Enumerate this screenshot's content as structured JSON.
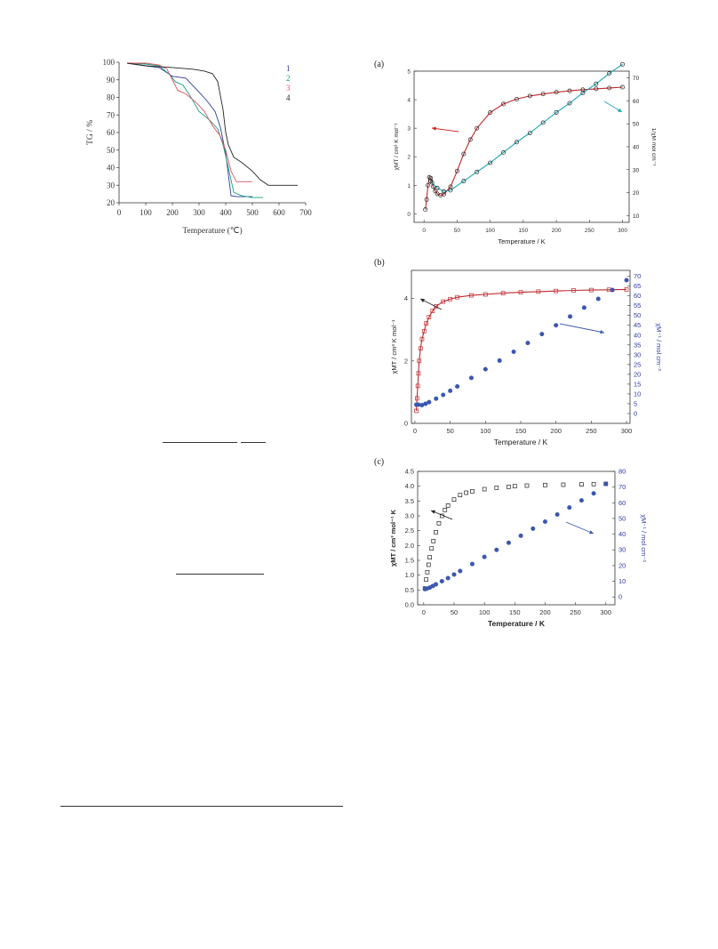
{
  "labels": {
    "panel_a": "(a)",
    "panel_b": "(b)",
    "panel_c": "(c)"
  },
  "colors": {
    "s1": "#2b3c9e",
    "s2": "#14a07a",
    "s3": "#e0525e",
    "s4": "#222222",
    "red_fit": "#c0282c",
    "cyan_fit": "#1aa6b0",
    "blue": "#3b57b0",
    "blue_axis": "#2f3aa8"
  },
  "chart_data": [
    {
      "id": "tg",
      "type": "line",
      "title": "",
      "xlabel": "Temperature (℃)",
      "ylabel": "TG / %",
      "xlim": [
        0,
        700
      ],
      "ylim": [
        20,
        100
      ],
      "xticks": [
        0,
        100,
        200,
        300,
        400,
        500,
        600,
        700
      ],
      "yticks": [
        20,
        30,
        40,
        50,
        60,
        70,
        80,
        90,
        100
      ],
      "grid": false,
      "legend": "top-right",
      "series": [
        {
          "name": "1",
          "color": "#2b3c9e",
          "x": [
            30,
            100,
            150,
            200,
            250,
            300,
            330,
            360,
            380,
            400,
            420,
            440,
            460,
            500
          ],
          "y": [
            99.5,
            98,
            97,
            92,
            91,
            83,
            78,
            72,
            63,
            48,
            24,
            23.5,
            23.5,
            23.5
          ]
        },
        {
          "name": "2",
          "color": "#14a07a",
          "x": [
            30,
            100,
            150,
            190,
            210,
            240,
            270,
            300,
            340,
            370,
            390,
            410,
            430,
            460,
            500,
            540
          ],
          "y": [
            99.5,
            99,
            98,
            93,
            89,
            87,
            80,
            72,
            67,
            62,
            53,
            40,
            26,
            24,
            23,
            23
          ]
        },
        {
          "name": "3",
          "color": "#e0525e",
          "x": [
            30,
            100,
            150,
            180,
            200,
            220,
            250,
            290,
            320,
            350,
            380,
            400,
            420,
            440,
            470,
            500
          ],
          "y": [
            99.5,
            99.5,
            98.5,
            96,
            90,
            84,
            82,
            77,
            72,
            64,
            58,
            50,
            38,
            32,
            32,
            32
          ]
        },
        {
          "name": "4",
          "color": "#222222",
          "x": [
            30,
            100,
            200,
            280,
            320,
            350,
            370,
            390,
            400,
            410,
            430,
            460,
            500,
            530,
            560,
            600,
            650,
            670
          ],
          "y": [
            99.5,
            98,
            97,
            96,
            95,
            93.5,
            89,
            73,
            60,
            53,
            46,
            43,
            38,
            33,
            30,
            30,
            30,
            30
          ]
        }
      ]
    },
    {
      "id": "a",
      "type": "scatter",
      "xlabel": "Temperature / K",
      "ylabel": "χMT / cm³ K mol⁻¹",
      "y2label": "1/χM  mol cm⁻³",
      "xlim": [
        -15,
        310
      ],
      "ylim": [
        -0.3,
        5
      ],
      "y2lim": [
        7,
        73
      ],
      "xticks": [
        0,
        50,
        100,
        150,
        200,
        250,
        300
      ],
      "yticks": [
        0,
        1,
        2,
        3,
        4,
        5
      ],
      "y2ticks": [
        10,
        20,
        30,
        40,
        50,
        60,
        70
      ],
      "grid": false,
      "series": [
        {
          "name": "χMT",
          "axis": "left",
          "marker": "open-circle",
          "color": "#222222",
          "x": [
            2,
            4,
            6,
            8,
            10,
            12,
            14,
            17,
            20,
            25,
            30,
            40,
            50,
            60,
            70,
            80,
            100,
            120,
            140,
            160,
            180,
            200,
            220,
            240,
            260,
            280,
            300
          ],
          "y": [
            0.15,
            0.5,
            1.0,
            1.28,
            1.25,
            1.1,
            0.95,
            0.8,
            0.7,
            0.65,
            0.68,
            0.95,
            1.5,
            2.1,
            2.6,
            3.0,
            3.55,
            3.85,
            4.02,
            4.13,
            4.2,
            4.26,
            4.31,
            4.35,
            4.38,
            4.41,
            4.44
          ]
        },
        {
          "name": "1/χM",
          "axis": "right",
          "marker": "open-circle",
          "color": "#222222",
          "x": [
            10,
            20,
            30,
            40,
            60,
            80,
            100,
            120,
            140,
            160,
            180,
            200,
            220,
            240,
            260,
            280,
            300
          ],
          "y": [
            25,
            22,
            20.5,
            21,
            25,
            29,
            33,
            37.5,
            42,
            46,
            50.5,
            55,
            59,
            63.5,
            67.5,
            72,
            76
          ]
        }
      ]
    },
    {
      "id": "b",
      "type": "scatter",
      "xlabel": "Temperature / K",
      "ylabel": "χMT / cm³ K mol⁻¹",
      "y2label": "χM⁻¹ / mol cm⁻³",
      "xlim": [
        -5,
        305
      ],
      "ylim": [
        0,
        4.9
      ],
      "y2lim": [
        -5,
        73
      ],
      "xticks": [
        0,
        50,
        100,
        150,
        200,
        250,
        300
      ],
      "yticks": [
        0,
        2,
        4
      ],
      "y2ticks": [
        0,
        5,
        10,
        15,
        20,
        25,
        30,
        35,
        40,
        45,
        50,
        55,
        60,
        65,
        70
      ],
      "grid": false,
      "series": [
        {
          "name": "χMT",
          "axis": "left",
          "marker": "open-square",
          "color": "#c0282c",
          "x": [
            2,
            3,
            4,
            5,
            6,
            8,
            10,
            13,
            16,
            20,
            25,
            30,
            40,
            50,
            60,
            80,
            100,
            125,
            150,
            175,
            200,
            225,
            250,
            275,
            300
          ],
          "y": [
            0.4,
            0.8,
            1.2,
            1.6,
            2.0,
            2.4,
            2.7,
            2.95,
            3.2,
            3.4,
            3.6,
            3.75,
            3.9,
            3.98,
            4.04,
            4.1,
            4.13,
            4.17,
            4.2,
            4.22,
            4.24,
            4.26,
            4.27,
            4.28,
            4.29
          ]
        },
        {
          "name": "χM⁻¹",
          "axis": "right",
          "marker": "filled-circle",
          "color": "#3b57b0",
          "x": [
            2,
            5,
            10,
            15,
            20,
            30,
            40,
            50,
            60,
            80,
            100,
            120,
            140,
            160,
            180,
            200,
            220,
            240,
            260,
            280,
            300
          ],
          "y": [
            4.5,
            4.5,
            4.3,
            5,
            5.8,
            7.6,
            9.5,
            11.6,
            13.8,
            18.2,
            22.6,
            27,
            31.5,
            36,
            40.5,
            45,
            49.5,
            54,
            58.5,
            63,
            68
          ]
        }
      ]
    },
    {
      "id": "c",
      "type": "scatter",
      "xlabel": "Temperature / K",
      "ylabel": "χMT / cm³ mol⁻¹ K",
      "y2label": "χM⁻¹ / mol cm⁻³",
      "xlim": [
        -10,
        315
      ],
      "ylim": [
        0,
        4.5
      ],
      "y2lim": [
        -5,
        80
      ],
      "xticks": [
        0,
        50,
        100,
        150,
        200,
        250,
        300
      ],
      "yticks": [
        0.0,
        0.5,
        1.0,
        1.5,
        2.0,
        2.5,
        3.0,
        3.5,
        4.0,
        4.5
      ],
      "y2ticks": [
        0,
        10,
        20,
        30,
        40,
        50,
        60,
        70,
        80
      ],
      "grid": false,
      "series": [
        {
          "name": "χMT",
          "axis": "left",
          "marker": "open-square",
          "color": "#222222",
          "x": [
            2,
            4,
            6,
            8,
            10,
            13,
            16,
            20,
            25,
            30,
            35,
            40,
            50,
            60,
            70,
            80,
            100,
            120,
            140,
            150,
            170,
            200,
            230,
            260,
            280,
            300
          ],
          "y": [
            0.55,
            0.85,
            1.1,
            1.35,
            1.6,
            1.9,
            2.15,
            2.45,
            2.75,
            3.0,
            3.2,
            3.35,
            3.55,
            3.7,
            3.78,
            3.83,
            3.9,
            3.95,
            3.98,
            4.0,
            4.02,
            4.04,
            4.05,
            4.06,
            4.07,
            4.08
          ]
        },
        {
          "name": "χM⁻¹",
          "axis": "right",
          "marker": "filled-circle",
          "color": "#3b57b0",
          "x": [
            2,
            5,
            10,
            15,
            20,
            30,
            40,
            50,
            60,
            80,
            100,
            120,
            140,
            160,
            180,
            200,
            220,
            240,
            260,
            280,
            300
          ],
          "y": [
            5,
            5.3,
            6,
            7,
            8,
            10,
            12,
            14.3,
            16.5,
            21,
            25.5,
            30,
            34.5,
            39,
            43.5,
            48,
            52.5,
            57,
            61.5,
            66,
            72
          ]
        }
      ]
    }
  ]
}
